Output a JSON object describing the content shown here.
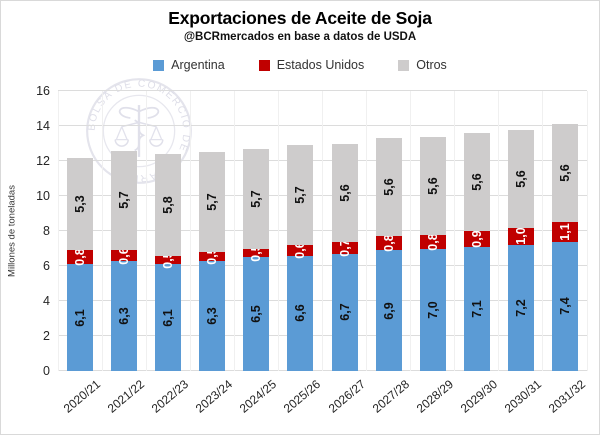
{
  "title": "Exportaciones de Aceite de Soja",
  "subtitle": "@BCRmercados en base a datos de USDA",
  "legend": [
    {
      "label": "Argentina",
      "color": "#5B9BD5"
    },
    {
      "label": "Estados Unidos",
      "color": "#C00000"
    },
    {
      "label": "Otros",
      "color": "#CECCCC"
    }
  ],
  "watermark": {
    "ring_text": "BOLSA DE COMERCIO DE ROSARIO",
    "color": "#e2e2ea"
  },
  "chart_data": {
    "type": "bar",
    "stacked": true,
    "title": "Exportaciones de Aceite de Soja",
    "subtitle": "@BCRmercados en base a datos de USDA",
    "categories": [
      "2020/21",
      "2021/22",
      "2022/23",
      "2023/24",
      "2024/25",
      "2025/26",
      "2026/27",
      "2027/28",
      "2028/29",
      "2029/30",
      "2030/31",
      "2031/32"
    ],
    "series": [
      {
        "name": "Argentina",
        "color": "#5B9BD5",
        "label_color": "#111111",
        "values": [
          6.1,
          6.3,
          6.1,
          6.3,
          6.5,
          6.6,
          6.7,
          6.9,
          7.0,
          7.1,
          7.2,
          7.4
        ]
      },
      {
        "name": "Estados Unidos",
        "color": "#C00000",
        "label_color": "#ffffff",
        "values": [
          0.8,
          0.6,
          0.5,
          0.5,
          0.5,
          0.6,
          0.7,
          0.8,
          0.8,
          0.9,
          1.0,
          1.1
        ]
      },
      {
        "name": "Otros",
        "color": "#CECCCC",
        "label_color": "#111111",
        "values": [
          5.3,
          5.7,
          5.8,
          5.7,
          5.7,
          5.7,
          5.6,
          5.6,
          5.6,
          5.6,
          5.6,
          5.6
        ]
      }
    ],
    "xlabel": "",
    "ylabel": "Millones de toneladas",
    "ylim": [
      0,
      16
    ],
    "yticks": [
      0,
      2,
      4,
      6,
      8,
      10,
      12,
      14,
      16
    ],
    "grid": true,
    "legend_position": "top",
    "decimal_separator": ","
  }
}
